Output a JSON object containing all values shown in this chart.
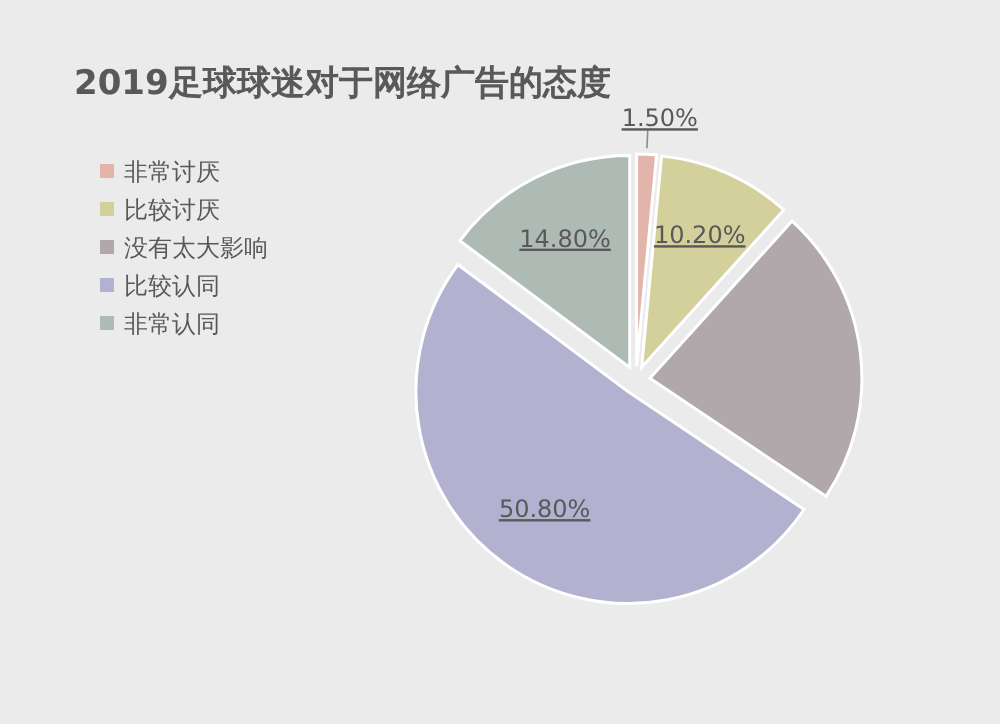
{
  "chart_data": {
    "type": "pie",
    "title": "2019足球球迷对于网络广告的态度",
    "categories": [
      "非常讨厌",
      "比较讨厌",
      "没有太大影响",
      "比较认同",
      "非常认同"
    ],
    "values": [
      1.5,
      10.2,
      22.7,
      50.8,
      14.8
    ],
    "value_labels": [
      "1.50%",
      "10.20%",
      null,
      "50.80%",
      "14.80%"
    ],
    "colors": [
      "#e3b4ac",
      "#d3d09c",
      "#b0a8aa",
      "#b2b1cf",
      "#aebab4"
    ],
    "legend": "left"
  }
}
